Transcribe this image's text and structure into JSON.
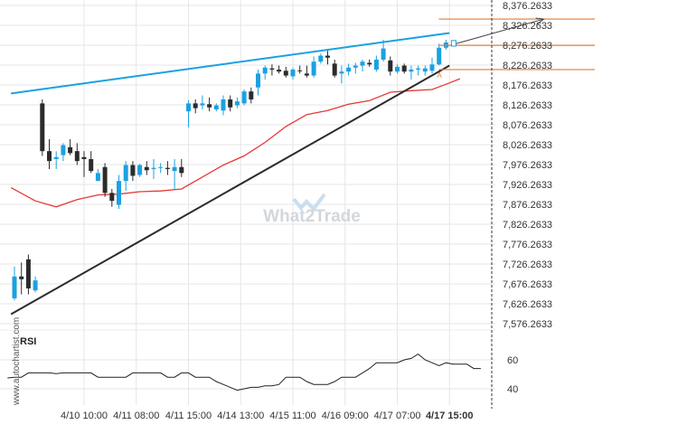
{
  "chart_data": {
    "type": "candlestick",
    "colors": {
      "up": "#1ba1e2",
      "down": "#2b2b2b",
      "upper_line": "#1ba1e2",
      "lower_line": "#2b2b2b",
      "ma": "#e53935",
      "target": "#e07b39",
      "rsi": "#222222",
      "grid": "#e6e6e6"
    },
    "price_axis": {
      "ticks": [
        "8,376.2633",
        "8,326.2633",
        "8,276.2633",
        "8,226.2633",
        "8,176.2633",
        "8,126.2633",
        "8,076.2633",
        "8,026.2633",
        "7,976.2633",
        "7,926.2633",
        "7,876.2633",
        "7,826.2633",
        "7,776.2633",
        "7,726.2633",
        "7,676.2633",
        "7,626.2633",
        "7,576.2633"
      ],
      "ylim": [
        7576.2633,
        8376.2633
      ]
    },
    "time_axis": {
      "labels": [
        "4/10 10:00",
        "4/11 08:00",
        "4/11 15:00",
        "4/14 13:00",
        "4/15 11:00",
        "4/16 09:00",
        "4/17 07:00",
        "4/17 15:00"
      ],
      "label_bars": [
        10,
        17.5,
        25,
        32.5,
        40,
        47.5,
        55,
        62.5
      ],
      "last_label_bold": true
    },
    "candles": [
      {
        "o": 7640,
        "h": 7720,
        "l": 7635,
        "c": 7695
      },
      {
        "o": 7695,
        "h": 7730,
        "l": 7650,
        "c": 7688
      },
      {
        "o": 7738,
        "h": 7750,
        "l": 7650,
        "c": 7665
      },
      {
        "o": 7660,
        "h": 7695,
        "l": 7655,
        "c": 7685
      },
      {
        "o": 8130,
        "h": 8140,
        "l": 7998,
        "c": 8010
      },
      {
        "o": 8010,
        "h": 8040,
        "l": 7965,
        "c": 7985
      },
      {
        "o": 7990,
        "h": 8010,
        "l": 7965,
        "c": 7995
      },
      {
        "o": 8000,
        "h": 8030,
        "l": 7985,
        "c": 8025
      },
      {
        "o": 8020,
        "h": 8040,
        "l": 8000,
        "c": 8005
      },
      {
        "o": 8010,
        "h": 8030,
        "l": 7975,
        "c": 7985
      },
      {
        "o": 7995,
        "h": 8010,
        "l": 7945,
        "c": 7990
      },
      {
        "o": 7990,
        "h": 8010,
        "l": 7955,
        "c": 7960
      },
      {
        "o": 7935,
        "h": 7965,
        "l": 7935,
        "c": 7955
      },
      {
        "o": 7970,
        "h": 7980,
        "l": 7895,
        "c": 7905
      },
      {
        "o": 7905,
        "h": 7915,
        "l": 7870,
        "c": 7885
      },
      {
        "o": 7875,
        "h": 7950,
        "l": 7865,
        "c": 7935
      },
      {
        "o": 7935,
        "h": 7985,
        "l": 7910,
        "c": 7975
      },
      {
        "o": 7975,
        "h": 7985,
        "l": 7935,
        "c": 7948
      },
      {
        "o": 7950,
        "h": 7978,
        "l": 7945,
        "c": 7975
      },
      {
        "o": 7970,
        "h": 7985,
        "l": 7950,
        "c": 7962
      },
      {
        "o": 7965,
        "h": 7990,
        "l": 7940,
        "c": 7968
      },
      {
        "o": 7968,
        "h": 7980,
        "l": 7955,
        "c": 7970
      },
      {
        "o": 7968,
        "h": 7985,
        "l": 7950,
        "c": 7965
      },
      {
        "o": 7960,
        "h": 7990,
        "l": 7915,
        "c": 7970
      },
      {
        "o": 7970,
        "h": 7990,
        "l": 7945,
        "c": 7955
      },
      {
        "o": 8110,
        "h": 8138,
        "l": 8070,
        "c": 8130
      },
      {
        "o": 8130,
        "h": 8140,
        "l": 8105,
        "c": 8118
      },
      {
        "o": 8125,
        "h": 8150,
        "l": 8115,
        "c": 8130
      },
      {
        "o": 8128,
        "h": 8145,
        "l": 8110,
        "c": 8120
      },
      {
        "o": 8115,
        "h": 8130,
        "l": 8110,
        "c": 8125
      },
      {
        "o": 8112,
        "h": 8150,
        "l": 8100,
        "c": 8140
      },
      {
        "o": 8140,
        "h": 8150,
        "l": 8110,
        "c": 8120
      },
      {
        "o": 8125,
        "h": 8145,
        "l": 8118,
        "c": 8135
      },
      {
        "o": 8130,
        "h": 8165,
        "l": 8125,
        "c": 8160
      },
      {
        "o": 8160,
        "h": 8170,
        "l": 8130,
        "c": 8140
      },
      {
        "o": 8170,
        "h": 8215,
        "l": 8150,
        "c": 8205
      },
      {
        "o": 8205,
        "h": 8225,
        "l": 8190,
        "c": 8220
      },
      {
        "o": 8218,
        "h": 8228,
        "l": 8200,
        "c": 8215
      },
      {
        "o": 8215,
        "h": 8225,
        "l": 8205,
        "c": 8210
      },
      {
        "o": 8212,
        "h": 8222,
        "l": 8195,
        "c": 8200
      },
      {
        "o": 8198,
        "h": 8220,
        "l": 8190,
        "c": 8215
      },
      {
        "o": 8213,
        "h": 8225,
        "l": 8205,
        "c": 8212
      },
      {
        "o": 8205,
        "h": 8225,
        "l": 8195,
        "c": 8200
      },
      {
        "o": 8200,
        "h": 8248,
        "l": 8195,
        "c": 8235
      },
      {
        "o": 8235,
        "h": 8255,
        "l": 8230,
        "c": 8250
      },
      {
        "o": 8250,
        "h": 8262,
        "l": 8228,
        "c": 8245
      },
      {
        "o": 8230,
        "h": 8240,
        "l": 8195,
        "c": 8200
      },
      {
        "o": 8205,
        "h": 8225,
        "l": 8180,
        "c": 8210
      },
      {
        "o": 8210,
        "h": 8230,
        "l": 8200,
        "c": 8220
      },
      {
        "o": 8220,
        "h": 8232,
        "l": 8205,
        "c": 8225
      },
      {
        "o": 8225,
        "h": 8240,
        "l": 8210,
        "c": 8235
      },
      {
        "o": 8232,
        "h": 8240,
        "l": 8222,
        "c": 8228
      },
      {
        "o": 8215,
        "h": 8250,
        "l": 8210,
        "c": 8240
      },
      {
        "o": 8240,
        "h": 8290,
        "l": 8235,
        "c": 8268
      },
      {
        "o": 8238,
        "h": 8248,
        "l": 8200,
        "c": 8210
      },
      {
        "o": 8210,
        "h": 8228,
        "l": 8205,
        "c": 8222
      },
      {
        "o": 8225,
        "h": 8230,
        "l": 8205,
        "c": 8210
      },
      {
        "o": 8210,
        "h": 8225,
        "l": 8190,
        "c": 8215
      },
      {
        "o": 8215,
        "h": 8225,
        "l": 8200,
        "c": 8218
      },
      {
        "o": 8210,
        "h": 8225,
        "l": 8200,
        "c": 8218
      },
      {
        "o": 8212,
        "h": 8245,
        "l": 8205,
        "c": 8228
      },
      {
        "o": 8228,
        "h": 8280,
        "l": 8225,
        "c": 8270
      },
      {
        "o": 8270,
        "h": 8290,
        "l": 8265,
        "c": 8283
      }
    ],
    "moving_average": [
      [
        -0.5,
        7918
      ],
      [
        3,
        7885
      ],
      [
        6,
        7870
      ],
      [
        9,
        7888
      ],
      [
        12,
        7900
      ],
      [
        15,
        7902
      ],
      [
        18,
        7908
      ],
      [
        21,
        7910
      ],
      [
        24,
        7915
      ],
      [
        27,
        7945
      ],
      [
        30,
        7975
      ],
      [
        33,
        7998
      ],
      [
        36,
        8032
      ],
      [
        39,
        8072
      ],
      [
        42,
        8102
      ],
      [
        45,
        8112
      ],
      [
        48,
        8128
      ],
      [
        51,
        8137
      ],
      [
        54,
        8158
      ],
      [
        57,
        8162
      ],
      [
        60,
        8165
      ],
      [
        62,
        8178
      ],
      [
        64,
        8192
      ]
    ],
    "upper_trendline": {
      "from": [
        -0.5,
        8155
      ],
      "to": [
        62.5,
        8307
      ]
    },
    "lower_trendline": {
      "from": [
        -0.5,
        7600
      ],
      "to": [
        62.5,
        8225
      ]
    },
    "projection_arrow": {
      "from": [
        63,
        8278
      ],
      "to": [
        75,
        8342
      ]
    },
    "target_levels": [
      8342,
      8276,
      8215
    ],
    "marker_label": "A",
    "rsi": {
      "label": "RSI",
      "ticks": [
        60,
        40
      ],
      "ylim": [
        25,
        75
      ],
      "values": [
        47.5,
        48,
        48,
        51,
        51,
        51,
        51,
        50.5,
        51,
        51,
        51,
        51,
        51,
        48,
        48,
        48,
        48,
        48,
        51,
        51,
        51,
        51,
        51,
        48,
        48,
        51,
        51,
        48,
        48,
        48,
        45,
        43,
        41,
        39,
        40,
        41,
        41,
        42,
        42,
        43,
        48,
        48,
        48,
        45,
        43,
        43,
        43,
        45,
        48,
        48,
        48,
        51,
        54,
        58,
        58,
        58,
        58,
        60,
        61,
        64,
        60,
        58,
        56,
        58,
        57,
        57,
        57,
        54,
        54
      ]
    },
    "watermark": "What2Trade",
    "side_text": "www.autochartist.com"
  }
}
